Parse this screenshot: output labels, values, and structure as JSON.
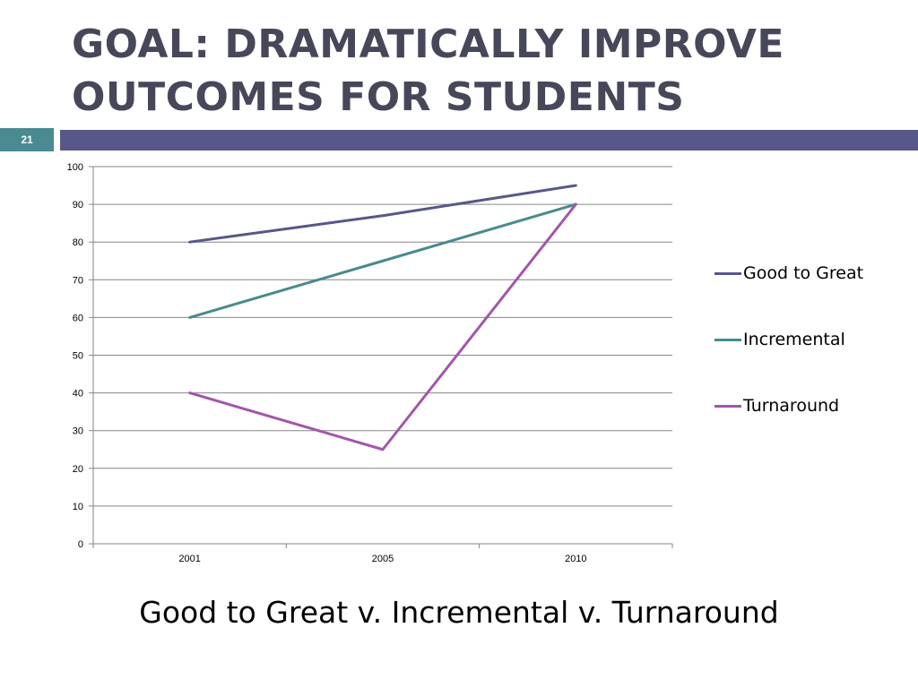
{
  "slide": {
    "title_line1": "GOAL: DRAMATICALLY IMPROVE",
    "title_line2": "OUTCOMES FOR STUDENTS",
    "slide_number": "21",
    "caption": "Good to Great v. Incremental v. Turnaround",
    "accent_color": "#57578a",
    "number_badge_color": "#4a8a91",
    "title_color": "#47475a"
  },
  "chart_data": {
    "type": "line",
    "title": "",
    "xlabel": "",
    "ylabel": "",
    "categories": [
      "2001",
      "2005",
      "2010"
    ],
    "ylim": [
      0,
      100
    ],
    "yticks": [
      "0",
      "10",
      "20",
      "30",
      "40",
      "50",
      "60",
      "70",
      "80",
      "90",
      "100"
    ],
    "grid": true,
    "legend_position": "right",
    "series": [
      {
        "name": "Good to Great",
        "values": [
          80,
          87,
          95
        ],
        "color": "#57578a"
      },
      {
        "name": "Incremental",
        "values": [
          60,
          75,
          90
        ],
        "color": "#4a8a8c"
      },
      {
        "name": "Turnaround",
        "values": [
          40,
          25,
          90
        ],
        "color": "#a356aa"
      }
    ]
  }
}
